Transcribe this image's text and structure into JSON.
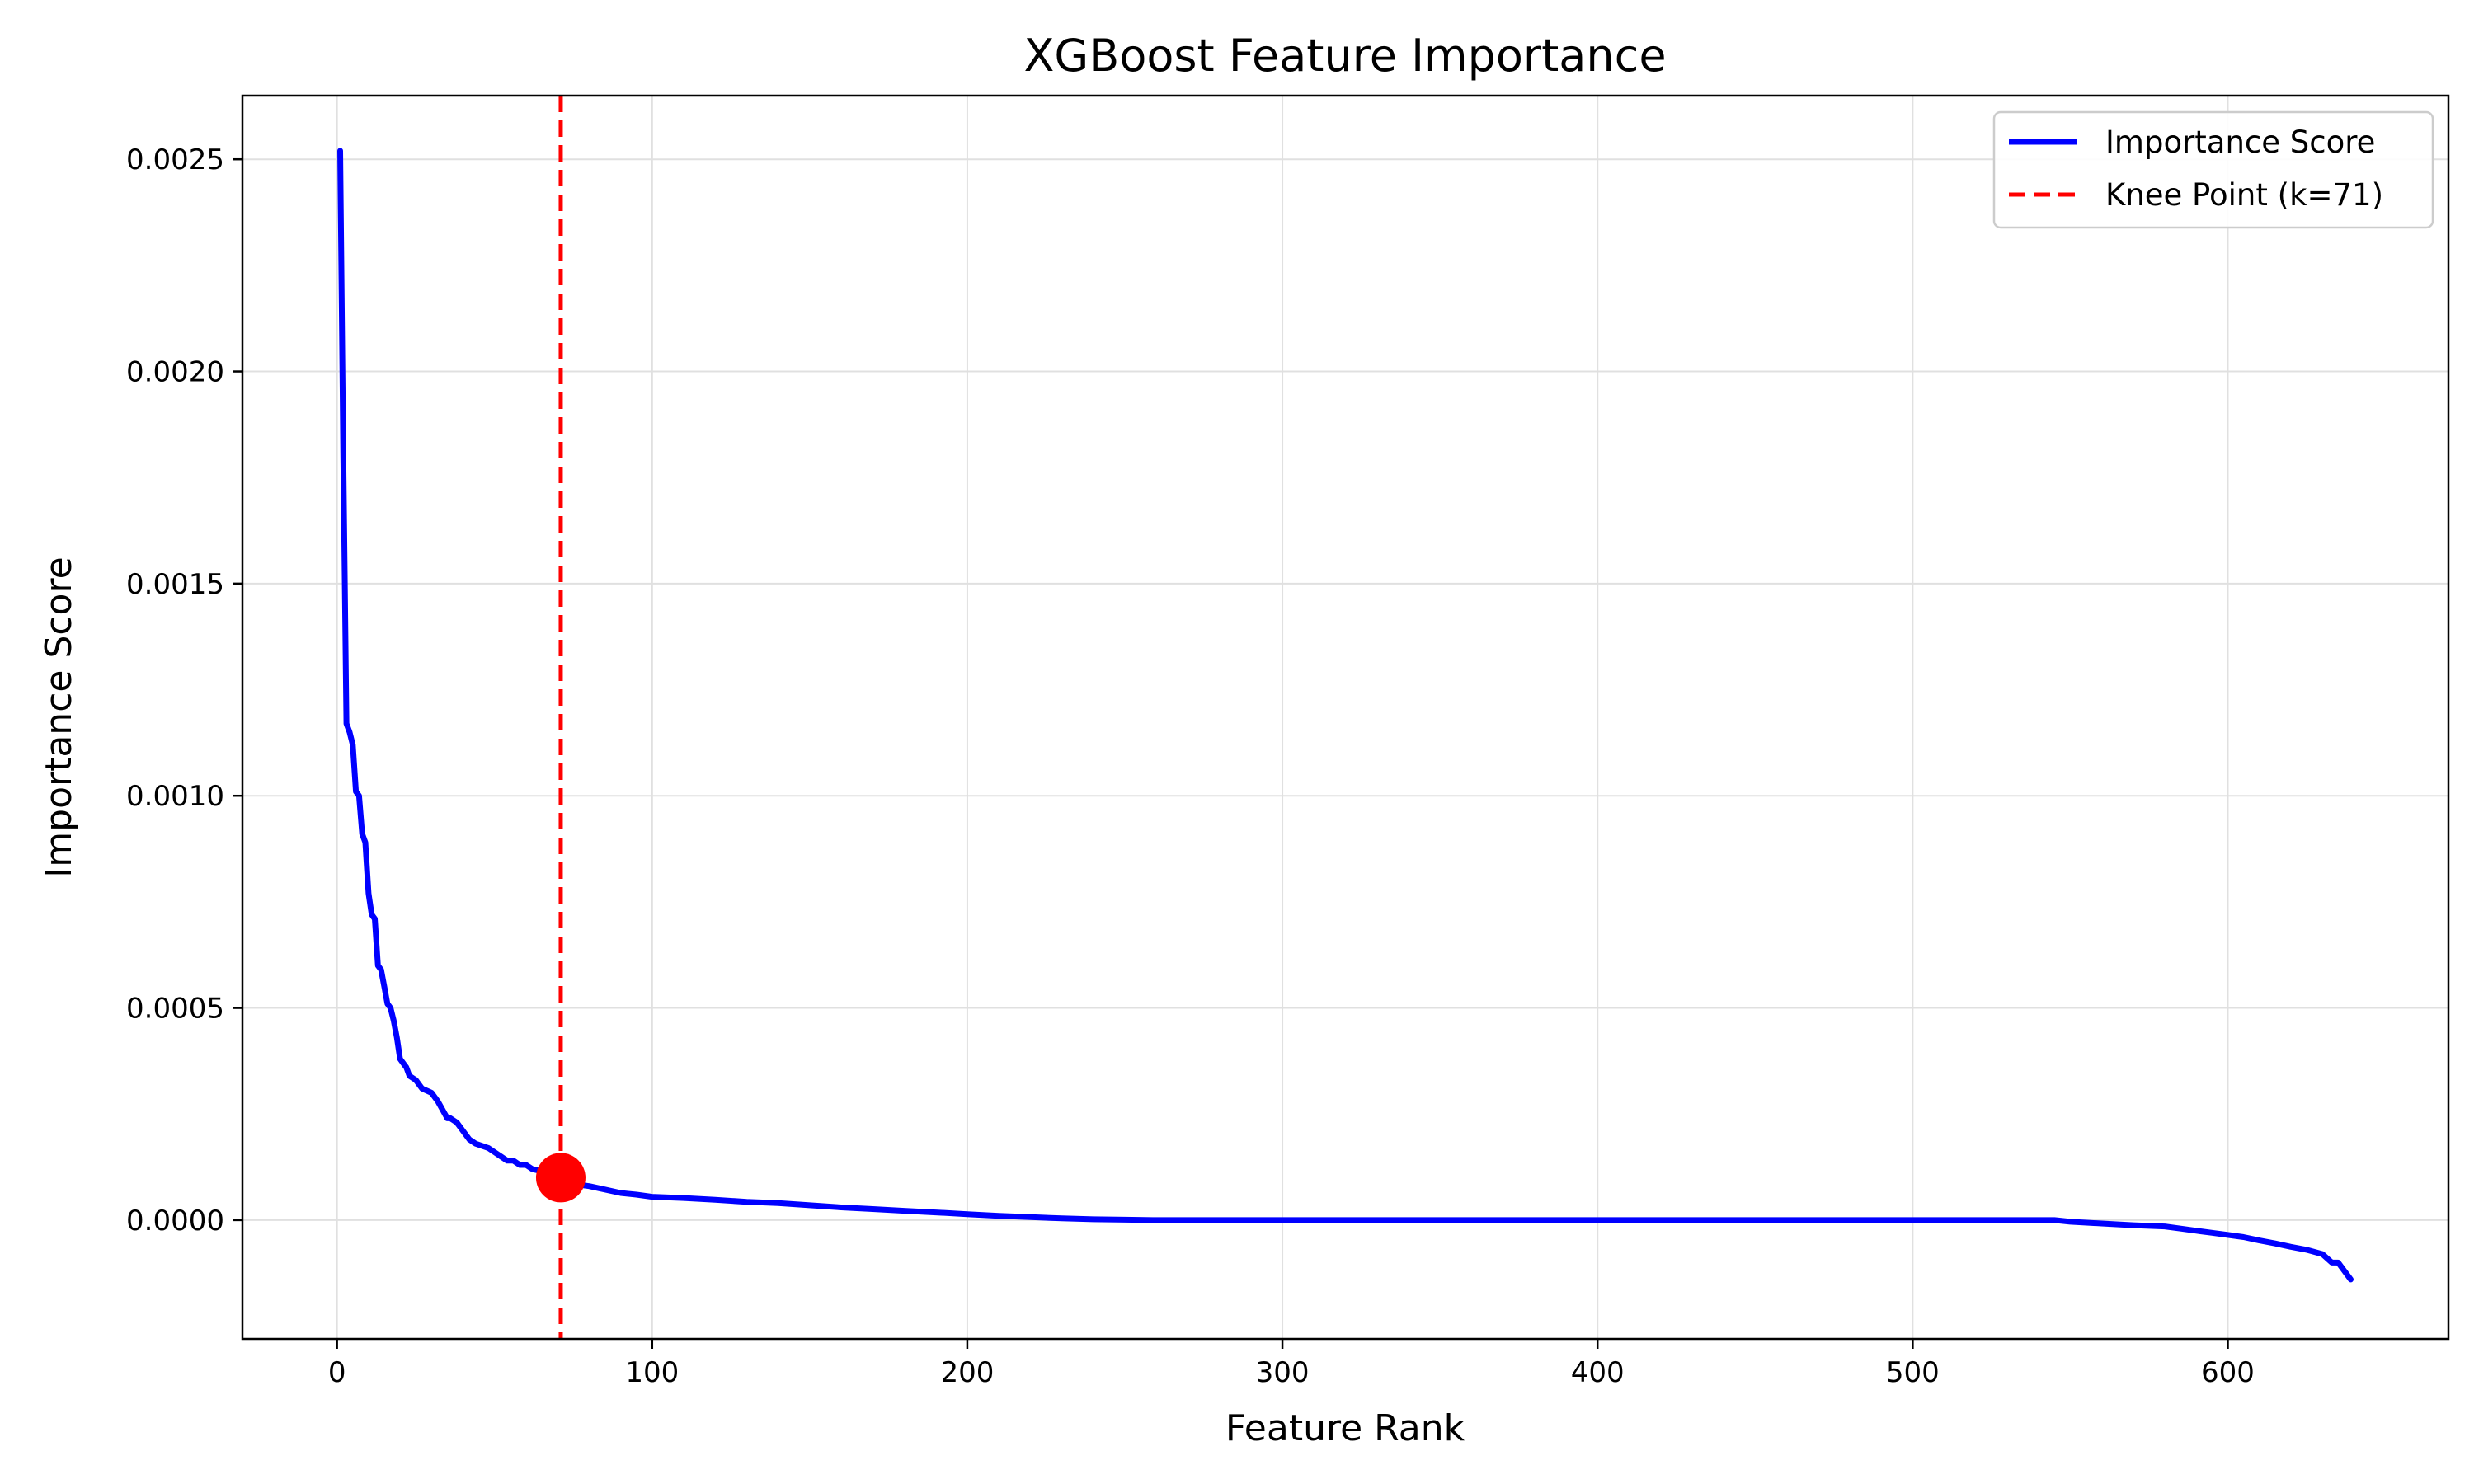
{
  "chart_data": {
    "type": "line",
    "title": "XGBoost Feature Importance",
    "xlabel": "Feature Rank",
    "ylabel": "Importance Score",
    "xlim": [
      -30,
      670
    ],
    "ylim": [
      -0.00028,
      0.00265
    ],
    "x_ticks": [
      0,
      100,
      200,
      300,
      400,
      500,
      600
    ],
    "x_tick_labels": [
      "0",
      "100",
      "200",
      "300",
      "400",
      "500",
      "600"
    ],
    "y_ticks": [
      0.0,
      0.0005,
      0.001,
      0.0015,
      0.002,
      0.0025
    ],
    "y_tick_labels": [
      "0.0000",
      "0.0005",
      "0.0010",
      "0.0015",
      "0.0020",
      "0.0025"
    ],
    "grid": true,
    "legend_position": "top-right",
    "series": [
      {
        "name": "Importance Score",
        "color": "#0000ff",
        "x": [
          1,
          2,
          3,
          4,
          5,
          6,
          7,
          8,
          9,
          10,
          11,
          12,
          13,
          14,
          15,
          16,
          17,
          18,
          19,
          20,
          21,
          22,
          23,
          25,
          27,
          30,
          32,
          35,
          36,
          38,
          40,
          42,
          44,
          46,
          48,
          50,
          52,
          54,
          56,
          58,
          60,
          62,
          65,
          68,
          71,
          75,
          80,
          85,
          90,
          95,
          100,
          110,
          120,
          130,
          140,
          150,
          160,
          170,
          180,
          190,
          200,
          210,
          220,
          230,
          240,
          250,
          260,
          300,
          400,
          500,
          545,
          550,
          560,
          570,
          580,
          585,
          590,
          595,
          600,
          605,
          610,
          615,
          620,
          625,
          630,
          633,
          635,
          637,
          639
        ],
        "y": [
          0.00252,
          0.0018,
          0.00117,
          0.00115,
          0.00112,
          0.00101,
          0.001,
          0.00091,
          0.00089,
          0.00077,
          0.00072,
          0.00071,
          0.0006,
          0.00059,
          0.00055,
          0.00051,
          0.0005,
          0.00047,
          0.00043,
          0.00038,
          0.00037,
          0.00036,
          0.00034,
          0.00033,
          0.00031,
          0.0003,
          0.00028,
          0.00024,
          0.00024,
          0.00023,
          0.00021,
          0.00019,
          0.00018,
          0.000175,
          0.00017,
          0.00016,
          0.00015,
          0.00014,
          0.00014,
          0.00013,
          0.00013,
          0.00012,
          0.000115,
          0.00011,
          0.0001,
          8.5e-05,
          8e-05,
          7.2e-05,
          6.4e-05,
          6e-05,
          5.5e-05,
          5.2e-05,
          4.8e-05,
          4.3e-05,
          4e-05,
          3.5e-05,
          3e-05,
          2.6e-05,
          2.2e-05,
          1.8e-05,
          1.4e-05,
          1e-05,
          7e-06,
          4e-06,
          2e-06,
          1e-06,
          0.0,
          0.0,
          0.0,
          0.0,
          0.0,
          -4e-06,
          -8e-06,
          -1.2e-05,
          -1.5e-05,
          -2e-05,
          -2.5e-05,
          -3e-05,
          -3.5e-05,
          -4e-05,
          -4.8e-05,
          -5.5e-05,
          -6.3e-05,
          -7e-05,
          -8e-05,
          -0.0001,
          -0.0001,
          -0.00012,
          -0.00014
        ]
      }
    ],
    "knee_point": {
      "label": "Knee Point (k=71)",
      "x": 71,
      "y": 0.0001,
      "line_color": "#ff0000",
      "marker_color": "#ff0000"
    }
  }
}
